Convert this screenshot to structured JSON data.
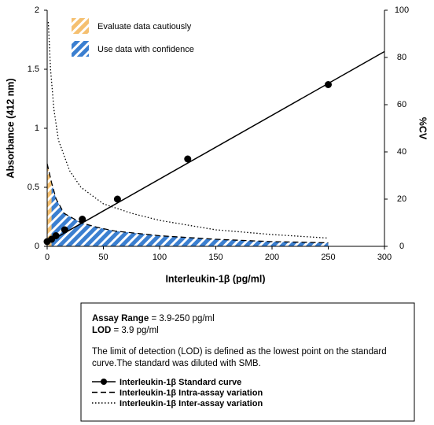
{
  "chart_data": {
    "type": "line",
    "xlabel": "Interleukin-1β (pg/ml)",
    "ylabel": "Absorbance (412 nm)",
    "y2label": "%CV",
    "xlim": [
      0,
      300
    ],
    "xticks": [
      0,
      50,
      100,
      150,
      200,
      250,
      300
    ],
    "ylim": [
      0,
      2
    ],
    "yticks": [
      0,
      0.5,
      1,
      1.5,
      2
    ],
    "y2lim": [
      0,
      100
    ],
    "y2ticks": [
      0,
      20,
      40,
      60,
      80,
      100
    ],
    "legend": "upper left",
    "regions": [
      {
        "name": "Evaluate data cautiously",
        "color": "#f5c070",
        "x": [
          0,
          3.9
        ]
      },
      {
        "name": "Use data with confidence",
        "color": "#3b7fd0",
        "x": [
          3.9,
          250
        ]
      }
    ],
    "series": [
      {
        "name": "Interleukin-1β Standard curve",
        "color": "#000000",
        "line_style": "solid",
        "markers": true,
        "x": [
          0,
          3.9,
          7.8,
          15.6,
          31.25,
          62.5,
          125,
          250
        ],
        "values": [
          0.04,
          0.06,
          0.09,
          0.14,
          0.23,
          0.4,
          0.74,
          1.37
        ],
        "trend": {
          "x": [
            0,
            300
          ],
          "values": [
            0.03,
            1.65
          ]
        }
      },
      {
        "name": "Interleukin-1β Intra-assay variation",
        "color": "#000000",
        "line_style": "dashed",
        "axis": "y2",
        "x": [
          0,
          3.9,
          8,
          15,
          30,
          45,
          60,
          100,
          150,
          200,
          250
        ],
        "values": [
          35,
          27,
          20,
          14,
          10,
          8,
          6.5,
          4.5,
          3,
          2,
          1.5
        ]
      },
      {
        "name": "Interleukin-1β Inter-assay variation",
        "color": "#000000",
        "line_style": "dotted",
        "axis": "y2",
        "x": [
          1,
          3,
          6,
          10,
          20,
          30,
          50,
          75,
          100,
          150,
          200,
          250
        ],
        "values": [
          95,
          75,
          58,
          45,
          32,
          25,
          18,
          14,
          11,
          7,
          5,
          3.5
        ]
      }
    ],
    "notes": [
      {
        "label": "Assay Range",
        "text": "= 3.9-250 pg/ml"
      },
      {
        "label": "LOD",
        "text": "= 3.9 pg/ml"
      }
    ],
    "description": "The limit of detection (LOD) is defined as the lowest point on the standard curve.The standard was diluted with SMB."
  }
}
